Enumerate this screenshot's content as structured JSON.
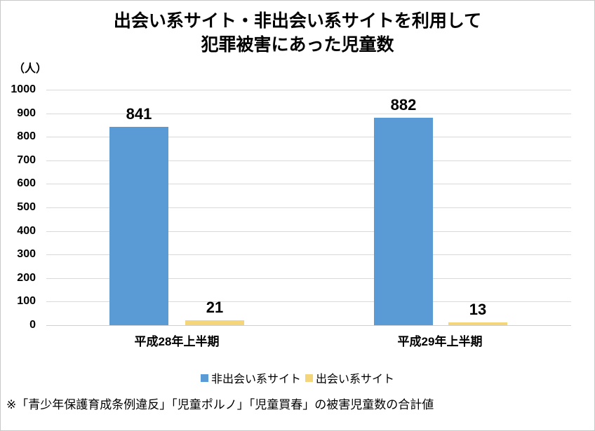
{
  "title": {
    "line1": "出会い系サイト・非出会い系サイトを利用して",
    "line2": "犯罪被害にあった児童数"
  },
  "axis_unit_label": "（人）",
  "footnote": "※「青少年保護育成条例違反」「児童ポルノ」「児童買春」の被害児童数の合計値",
  "colors": {
    "non_dating_series": "#5B9BD5",
    "dating_series": "#F4D57A",
    "gridline": "#D9D9D9",
    "text": "#000000",
    "border": "#C8C8C8"
  },
  "chart_data": {
    "type": "bar",
    "title": "出会い系サイト・非出会い系サイトを利用して犯罪被害にあった児童数",
    "categories": [
      "平成28年上半期",
      "平成29年上半期"
    ],
    "series": [
      {
        "name": "非出会い系サイト",
        "values": [
          841,
          882
        ],
        "color": "#5B9BD5"
      },
      {
        "name": "出会い系サイト",
        "values": [
          21,
          13
        ],
        "color": "#F4D57A"
      }
    ],
    "ylabel": "（人）",
    "ylim": [
      0,
      1000
    ],
    "ytick_step": 100,
    "grid": true,
    "legend_position": "bottom",
    "data_labels": true
  }
}
